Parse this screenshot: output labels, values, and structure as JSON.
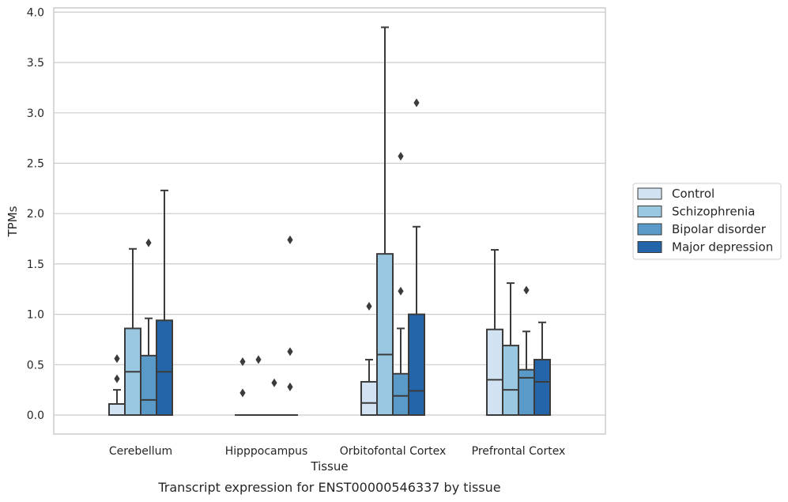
{
  "chart_data": {
    "type": "box",
    "title": "",
    "caption": "Transcript expression for ENST00000546337 by tissue",
    "xlabel": "Tissue",
    "ylabel": "TPMs",
    "ylim": [
      -0.19,
      4.05
    ],
    "yticks": [
      0.0,
      0.5,
      1.0,
      1.5,
      2.0,
      2.5,
      3.0,
      3.5,
      4.0
    ],
    "ytick_labels": [
      "0.0",
      "0.5",
      "1.0",
      "1.5",
      "2.0",
      "2.5",
      "3.0",
      "3.5",
      "4.0"
    ],
    "grid": true,
    "legend_position": "right",
    "categories": [
      "Cerebellum",
      "Hipppocampus",
      "Orbitofontal Cortex",
      "Prefrontal Cortex"
    ],
    "series": [
      {
        "name": "Control",
        "color": "#d1e2f2",
        "boxes": [
          {
            "q1": 0.0,
            "median": 0.0,
            "q3": 0.11,
            "whisker_low": 0.0,
            "whisker_high": 0.25,
            "outliers": [
              0.36,
              0.56
            ]
          },
          {
            "q1": 0.0,
            "median": 0.0,
            "q3": 0.0,
            "whisker_low": 0.0,
            "whisker_high": 0.0,
            "outliers": [
              0.22,
              0.53
            ]
          },
          {
            "q1": 0.0,
            "median": 0.12,
            "q3": 0.33,
            "whisker_low": 0.0,
            "whisker_high": 0.55,
            "outliers": [
              1.08
            ]
          },
          {
            "q1": 0.0,
            "median": 0.35,
            "q3": 0.85,
            "whisker_low": 0.0,
            "whisker_high": 1.64,
            "outliers": []
          }
        ]
      },
      {
        "name": "Schizophrenia",
        "color": "#9ac8e0",
        "boxes": [
          {
            "q1": 0.0,
            "median": 0.43,
            "q3": 0.86,
            "whisker_low": 0.0,
            "whisker_high": 1.65,
            "outliers": []
          },
          {
            "q1": 0.0,
            "median": 0.0,
            "q3": 0.0,
            "whisker_low": 0.0,
            "whisker_high": 0.0,
            "outliers": [
              0.55
            ]
          },
          {
            "q1": 0.0,
            "median": 0.6,
            "q3": 1.6,
            "whisker_low": 0.0,
            "whisker_high": 3.85,
            "outliers": []
          },
          {
            "q1": 0.0,
            "median": 0.25,
            "q3": 0.69,
            "whisker_low": 0.0,
            "whisker_high": 1.31,
            "outliers": []
          }
        ]
      },
      {
        "name": "Bipolar disorder",
        "color": "#5a9ac8",
        "boxes": [
          {
            "q1": 0.0,
            "median": 0.15,
            "q3": 0.59,
            "whisker_low": 0.0,
            "whisker_high": 0.96,
            "outliers": [
              1.71
            ]
          },
          {
            "q1": 0.0,
            "median": 0.0,
            "q3": 0.0,
            "whisker_low": 0.0,
            "whisker_high": 0.0,
            "outliers": [
              0.32
            ]
          },
          {
            "q1": 0.0,
            "median": 0.19,
            "q3": 0.41,
            "whisker_low": 0.0,
            "whisker_high": 0.86,
            "outliers": [
              1.23,
              2.57
            ]
          },
          {
            "q1": 0.0,
            "median": 0.37,
            "q3": 0.45,
            "whisker_low": 0.0,
            "whisker_high": 0.83,
            "outliers": [
              1.24
            ]
          }
        ]
      },
      {
        "name": "Major depression",
        "color": "#2464a8",
        "boxes": [
          {
            "q1": 0.0,
            "median": 0.43,
            "q3": 0.94,
            "whisker_low": 0.0,
            "whisker_high": 2.23,
            "outliers": []
          },
          {
            "q1": 0.0,
            "median": 0.0,
            "q3": 0.0,
            "whisker_low": 0.0,
            "whisker_high": 0.0,
            "outliers": [
              0.28,
              0.63,
              1.74
            ]
          },
          {
            "q1": 0.0,
            "median": 0.24,
            "q3": 1.0,
            "whisker_low": 0.0,
            "whisker_high": 1.87,
            "outliers": [
              3.1
            ]
          },
          {
            "q1": 0.0,
            "median": 0.33,
            "q3": 0.55,
            "whisker_low": 0.0,
            "whisker_high": 0.92,
            "outliers": []
          }
        ]
      }
    ]
  }
}
